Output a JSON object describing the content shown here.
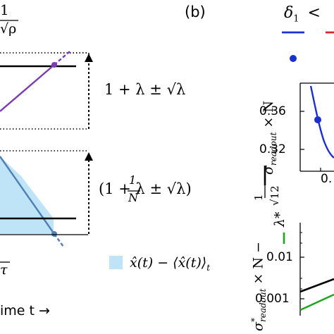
{
  "figure": {
    "panel_b_label": "(b)",
    "top_fraction": {
      "numerator": "1",
      "denominator": "√ρ"
    },
    "top_bound_label": "1 + λ ± √λ",
    "lower_bound_label": "(1 + λ ± √λ)",
    "lower_bound_fraction": {
      "numerator": "1",
      "denominator": "N"
    },
    "cut_tau": "τ",
    "legend_fill_label": "x̂(t) − ⟨x̂(t)⟩",
    "legend_fill_subscript": "t",
    "time_axis_label": "ime t →",
    "header_formula": "δ",
    "header_formula_sub": "1",
    "header_formula_rest": "<",
    "upper_ylabel_main": "σ",
    "upper_ylabel_sub": "readout",
    "upper_ylabel_rest": "× N",
    "upper_ticks": [
      "0.36",
      "0.32"
    ],
    "upper_xtick": "0.",
    "lower_ylabel_main": "σ",
    "lower_ylabel_sup": "*",
    "lower_ylabel_sub": "readout",
    "lower_ylabel_rest": "× N −",
    "lower_ylabel_frac": {
      "numerator": "1",
      "denominator": "√12"
    },
    "lambda_label": "λ*",
    "lower_ticks": [
      "0.01",
      "0.001"
    ],
    "colors": {
      "purple": "#7a3cb0",
      "blue": "#1b2fd1",
      "red": "#d22a2a",
      "green": "#1ea51e",
      "steel": "#4f7fb5",
      "fill": "#bfe3f7"
    }
  }
}
